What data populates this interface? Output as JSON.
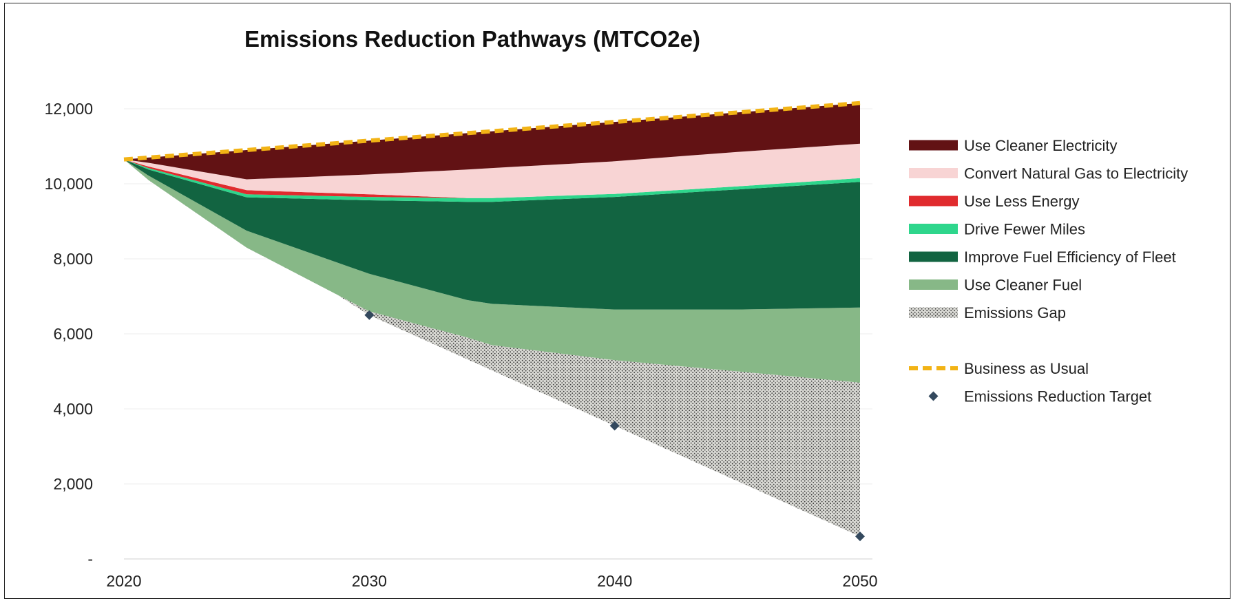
{
  "chart_data": {
    "type": "area",
    "title": "Emissions Reduction Pathways (MTCO2e)",
    "xlabel": "",
    "ylabel": "",
    "x": [
      2020,
      2021,
      2025,
      2030,
      2034,
      2035,
      2040,
      2045,
      2050
    ],
    "xticks": [
      2020,
      2030,
      2040,
      2050
    ],
    "xtick_labels": [
      "2020",
      "2030",
      "2040",
      "2050"
    ],
    "xlim": [
      2020,
      2050
    ],
    "ylim": [
      0,
      12000
    ],
    "yticks": [
      0,
      2000,
      4000,
      6000,
      8000,
      10000,
      12000
    ],
    "ytick_labels": [
      "-",
      "2,000",
      "4,000",
      "6,000",
      "8,000",
      "10,000",
      "12,000"
    ],
    "grid": true,
    "legend_position": "right",
    "bau": {
      "name": "Business as Usual",
      "color": "#F2B315",
      "values": [
        10650,
        10700,
        10900,
        11150,
        11350,
        11400,
        11650,
        11900,
        12150
      ]
    },
    "layers": [
      {
        "name": "Emissions Gap",
        "color": "#D6D6D0",
        "values": [
          10650,
          10100,
          8300,
          6600,
          5900,
          5700,
          5300,
          5000,
          4700
        ]
      },
      {
        "name": "Use Cleaner Fuel",
        "color": "#87B887",
        "values": [
          10650,
          10220,
          8750,
          7600,
          6900,
          6800,
          6650,
          6650,
          6700
        ]
      },
      {
        "name": "Improve Fuel Efficiency of Fleet",
        "color": "#126441",
        "values": [
          10650,
          10380,
          9640,
          9560,
          9520,
          9520,
          9650,
          9850,
          10050
        ]
      },
      {
        "name": "Drive Fewer Miles",
        "color": "#2ED68C",
        "values": [
          10650,
          10420,
          9720,
          9650,
          9620,
          9620,
          9730,
          9930,
          10150
        ]
      },
      {
        "name": "Use Less Energy",
        "color": "#E02B2E",
        "values": [
          10650,
          10460,
          9830,
          9720,
          9620,
          9620,
          9730,
          9930,
          10150
        ]
      },
      {
        "name": "Convert Natural Gas to Electricity",
        "color": "#F8D4D4",
        "values": [
          10650,
          10560,
          10120,
          10250,
          10380,
          10420,
          10600,
          10850,
          11070
        ]
      },
      {
        "name": "Use Cleaner Electricity",
        "color": "#621214",
        "values": [
          10650,
          10700,
          10900,
          11150,
          11350,
          11400,
          11650,
          11900,
          12150
        ]
      }
    ],
    "targets": {
      "name": "Emissions Reduction Target",
      "color": "#34495E",
      "x": [
        2030,
        2040,
        2050
      ],
      "values": [
        6500,
        3550,
        600
      ]
    },
    "legend_order": [
      "Use Cleaner Electricity",
      "Convert Natural Gas to Electricity",
      "Use Less Energy",
      "Drive Fewer Miles",
      "Improve Fuel Efficiency of Fleet",
      "Use Cleaner Fuel",
      "Emissions Gap",
      "",
      "Business as Usual",
      "Emissions Reduction Target"
    ]
  }
}
